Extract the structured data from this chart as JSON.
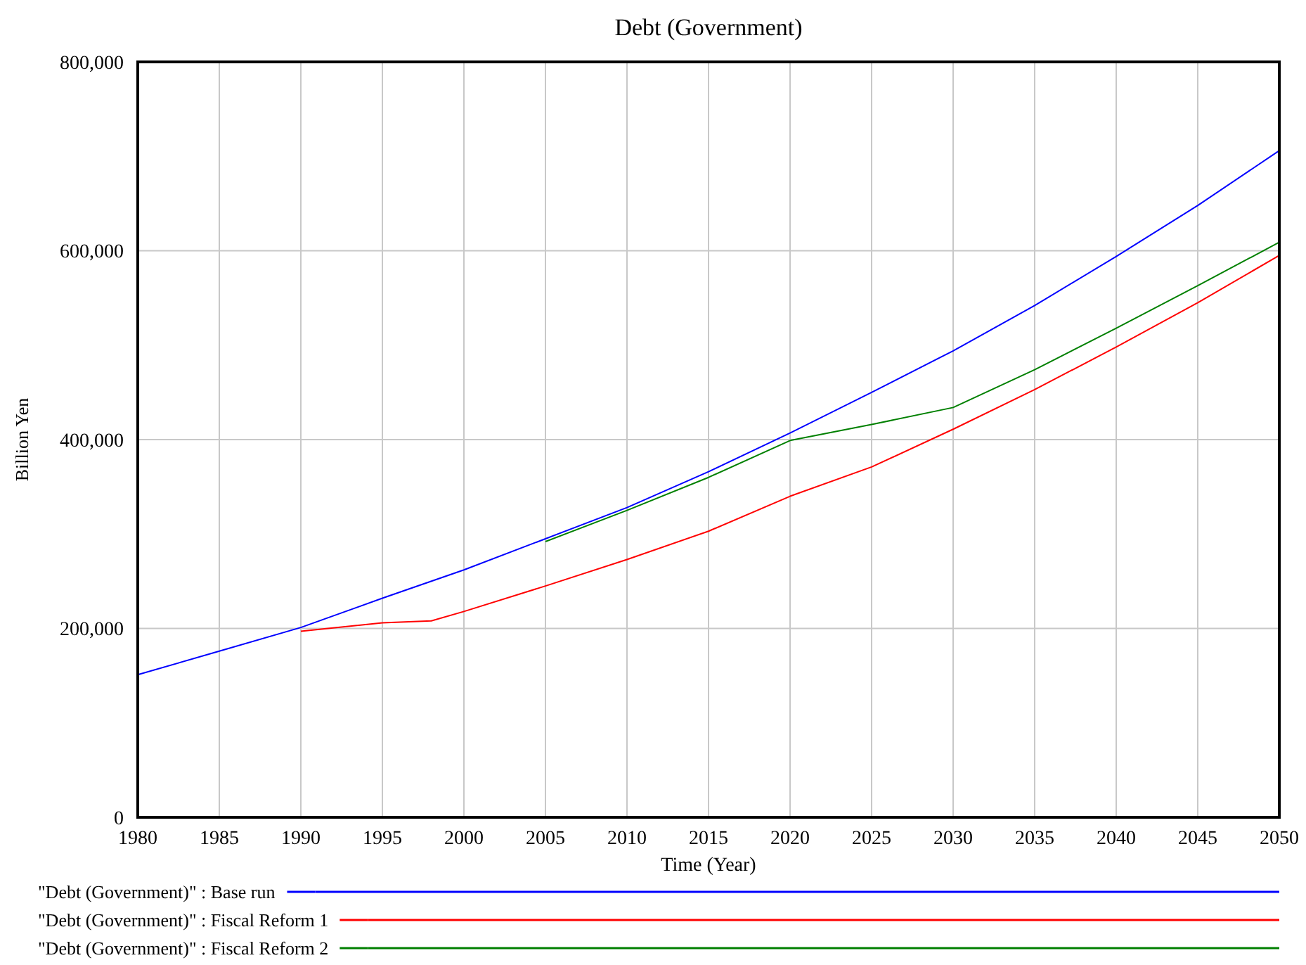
{
  "chart_data": {
    "type": "line",
    "title": "Debt (Government)",
    "xlabel": "Time (Year)",
    "ylabel": "Billion Yen",
    "xlim": [
      1980,
      2050
    ],
    "xticks": [
      1980,
      1985,
      1990,
      1995,
      2000,
      2005,
      2010,
      2015,
      2020,
      2025,
      2030,
      2035,
      2040,
      2045,
      2050
    ],
    "ylim": [
      0,
      800000
    ],
    "yticks": [
      {
        "value": 0,
        "label": "0"
      },
      {
        "value": 200000,
        "label": "200,000"
      },
      {
        "value": 400000,
        "label": "400,000"
      },
      {
        "value": 600000,
        "label": "600,000"
      },
      {
        "value": 800000,
        "label": "800,000"
      }
    ],
    "grid": true,
    "legend": "bottom",
    "line_style": "solid",
    "marker": "none",
    "series": [
      {
        "name": "\"Debt (Government)\" : Base run",
        "color": "#0000ff",
        "x": [
          1980,
          1985,
          1990,
          1995,
          2000,
          2005,
          2010,
          2015,
          2020,
          2025,
          2030,
          2035,
          2040,
          2045,
          2050
        ],
        "values": [
          151000,
          176000,
          201000,
          232000,
          262000,
          295000,
          328000,
          366000,
          407000,
          450000,
          494000,
          542000,
          594000,
          648000,
          706000
        ]
      },
      {
        "name": "\"Debt (Government)\" : Fiscal Reform 1",
        "color": "#ff0000",
        "x": [
          1990,
          1995,
          1998,
          2000,
          2005,
          2010,
          2015,
          2020,
          2025,
          2030,
          2035,
          2040,
          2045,
          2050
        ],
        "values": [
          197000,
          206000,
          208000,
          218000,
          245000,
          273000,
          303000,
          340000,
          371000,
          411000,
          453000,
          498000,
          545000,
          595000
        ]
      },
      {
        "name": "\"Debt (Government)\" : Fiscal Reform 2",
        "color": "#008000",
        "x": [
          2005,
          2010,
          2015,
          2020,
          2025,
          2030,
          2035,
          2040,
          2045,
          2050
        ],
        "values": [
          292000,
          325000,
          360000,
          399000,
          416000,
          434000,
          474000,
          518000,
          563000,
          609000
        ]
      }
    ]
  }
}
